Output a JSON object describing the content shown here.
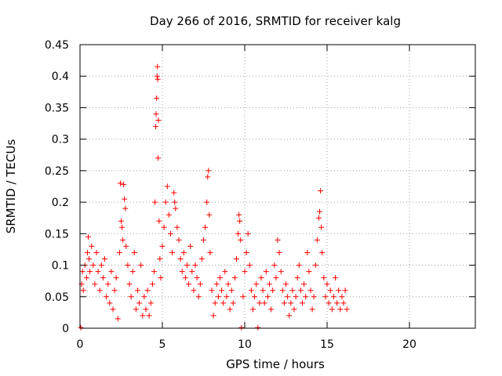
{
  "chart_data": {
    "type": "scatter",
    "title": "Day 266 of 2016, SRMTID for receiver kalg",
    "xlabel": "GPS time / hours",
    "ylabel": "SRMTID / TECUs",
    "xlim": [
      0,
      24
    ],
    "ylim": [
      0,
      0.45
    ],
    "xticks": [
      0,
      5,
      10,
      15,
      20
    ],
    "yticks": [
      0,
      0.05,
      0.1,
      0.15,
      0.2,
      0.25,
      0.3,
      0.35,
      0.4,
      0.45
    ],
    "xtick_labels": [
      "0",
      "5",
      "10",
      "15",
      "20"
    ],
    "ytick_labels": [
      "0",
      "0.05",
      "0.1",
      "0.15",
      "0.2",
      "0.25",
      "0.3",
      "0.35",
      "0.4",
      "0.45"
    ],
    "grid": true,
    "marker": "+",
    "series": [
      {
        "name": "SRMTID",
        "color": "#ff0000",
        "points": [
          [
            0.05,
            0.001
          ],
          [
            0.1,
            0.07
          ],
          [
            0.15,
            0.09
          ],
          [
            0.2,
            0.06
          ],
          [
            0.3,
            0.1
          ],
          [
            0.4,
            0.08
          ],
          [
            0.45,
            0.12
          ],
          [
            0.5,
            0.145
          ],
          [
            0.55,
            0.11
          ],
          [
            0.6,
            0.09
          ],
          [
            0.7,
            0.13
          ],
          [
            0.8,
            0.1
          ],
          [
            0.9,
            0.07
          ],
          [
            1.0,
            0.12
          ],
          [
            1.1,
            0.09
          ],
          [
            1.2,
            0.06
          ],
          [
            1.3,
            0.1
          ],
          [
            1.4,
            0.08
          ],
          [
            1.5,
            0.11
          ],
          [
            1.6,
            0.05
          ],
          [
            1.7,
            0.07
          ],
          [
            1.8,
            0.04
          ],
          [
            1.9,
            0.09
          ],
          [
            2.0,
            0.03
          ],
          [
            2.1,
            0.06
          ],
          [
            2.2,
            0.08
          ],
          [
            2.3,
            0.015
          ],
          [
            2.4,
            0.12
          ],
          [
            2.45,
            0.23
          ],
          [
            2.5,
            0.17
          ],
          [
            2.55,
            0.16
          ],
          [
            2.6,
            0.14
          ],
          [
            2.65,
            0.228
          ],
          [
            2.7,
            0.205
          ],
          [
            2.75,
            0.19
          ],
          [
            2.8,
            0.13
          ],
          [
            2.9,
            0.1
          ],
          [
            3.0,
            0.07
          ],
          [
            3.1,
            0.05
          ],
          [
            3.2,
            0.09
          ],
          [
            3.3,
            0.12
          ],
          [
            3.4,
            0.03
          ],
          [
            3.5,
            0.06
          ],
          [
            3.6,
            0.04
          ],
          [
            3.7,
            0.1
          ],
          [
            3.8,
            0.02
          ],
          [
            3.9,
            0.05
          ],
          [
            4.0,
            0.03
          ],
          [
            4.1,
            0.06
          ],
          [
            4.2,
            0.02
          ],
          [
            4.3,
            0.04
          ],
          [
            4.4,
            0.07
          ],
          [
            4.5,
            0.09
          ],
          [
            4.55,
            0.2
          ],
          [
            4.6,
            0.32
          ],
          [
            4.62,
            0.34
          ],
          [
            4.65,
            0.365
          ],
          [
            4.68,
            0.4
          ],
          [
            4.7,
            0.415
          ],
          [
            4.72,
            0.395
          ],
          [
            4.74,
            0.27
          ],
          [
            4.76,
            0.33
          ],
          [
            4.8,
            0.17
          ],
          [
            4.85,
            0.11
          ],
          [
            4.9,
            0.08
          ],
          [
            5.0,
            0.13
          ],
          [
            5.1,
            0.16
          ],
          [
            5.2,
            0.2
          ],
          [
            5.3,
            0.225
          ],
          [
            5.4,
            0.18
          ],
          [
            5.5,
            0.15
          ],
          [
            5.6,
            0.12
          ],
          [
            5.7,
            0.215
          ],
          [
            5.75,
            0.2
          ],
          [
            5.8,
            0.19
          ],
          [
            5.9,
            0.16
          ],
          [
            6.0,
            0.14
          ],
          [
            6.1,
            0.11
          ],
          [
            6.2,
            0.09
          ],
          [
            6.3,
            0.12
          ],
          [
            6.4,
            0.08
          ],
          [
            6.5,
            0.1
          ],
          [
            6.6,
            0.07
          ],
          [
            6.7,
            0.13
          ],
          [
            6.8,
            0.09
          ],
          [
            6.9,
            0.06
          ],
          [
            7.0,
            0.1
          ],
          [
            7.1,
            0.08
          ],
          [
            7.2,
            0.05
          ],
          [
            7.3,
            0.07
          ],
          [
            7.4,
            0.11
          ],
          [
            7.5,
            0.14
          ],
          [
            7.6,
            0.16
          ],
          [
            7.7,
            0.2
          ],
          [
            7.75,
            0.24
          ],
          [
            7.8,
            0.25
          ],
          [
            7.85,
            0.18
          ],
          [
            7.9,
            0.12
          ],
          [
            8.0,
            0.06
          ],
          [
            8.1,
            0.02
          ],
          [
            8.2,
            0.04
          ],
          [
            8.3,
            0.07
          ],
          [
            8.4,
            0.05
          ],
          [
            8.5,
            0.08
          ],
          [
            8.6,
            0.06
          ],
          [
            8.7,
            0.04
          ],
          [
            8.8,
            0.09
          ],
          [
            8.9,
            0.05
          ],
          [
            9.0,
            0.07
          ],
          [
            9.1,
            0.03
          ],
          [
            9.2,
            0.06
          ],
          [
            9.3,
            0.04
          ],
          [
            9.4,
            0.08
          ],
          [
            9.5,
            0.11
          ],
          [
            9.6,
            0.15
          ],
          [
            9.65,
            0.18
          ],
          [
            9.7,
            0.17
          ],
          [
            9.75,
            0.14
          ],
          [
            9.8,
            0.001
          ],
          [
            9.9,
            0.05
          ],
          [
            10.0,
            0.09
          ],
          [
            10.1,
            0.12
          ],
          [
            10.2,
            0.15
          ],
          [
            10.3,
            0.1
          ],
          [
            10.4,
            0.06
          ],
          [
            10.5,
            0.03
          ],
          [
            10.6,
            0.05
          ],
          [
            10.7,
            0.07
          ],
          [
            10.8,
            0.001
          ],
          [
            10.9,
            0.04
          ],
          [
            11.0,
            0.08
          ],
          [
            11.1,
            0.06
          ],
          [
            11.2,
            0.04
          ],
          [
            11.3,
            0.09
          ],
          [
            11.4,
            0.05
          ],
          [
            11.5,
            0.07
          ],
          [
            11.6,
            0.03
          ],
          [
            11.7,
            0.06
          ],
          [
            11.8,
            0.1
          ],
          [
            11.9,
            0.08
          ],
          [
            12.0,
            0.14
          ],
          [
            12.1,
            0.12
          ],
          [
            12.2,
            0.09
          ],
          [
            12.3,
            0.06
          ],
          [
            12.4,
            0.04
          ],
          [
            12.5,
            0.07
          ],
          [
            12.6,
            0.05
          ],
          [
            12.7,
            0.02
          ],
          [
            12.8,
            0.04
          ],
          [
            12.9,
            0.06
          ],
          [
            13.0,
            0.03
          ],
          [
            13.1,
            0.05
          ],
          [
            13.2,
            0.08
          ],
          [
            13.3,
            0.1
          ],
          [
            13.4,
            0.06
          ],
          [
            13.5,
            0.04
          ],
          [
            13.6,
            0.07
          ],
          [
            13.7,
            0.05
          ],
          [
            13.8,
            0.12
          ],
          [
            13.9,
            0.09
          ],
          [
            14.0,
            0.06
          ],
          [
            14.1,
            0.03
          ],
          [
            14.2,
            0.05
          ],
          [
            14.3,
            0.1
          ],
          [
            14.4,
            0.14
          ],
          [
            14.5,
            0.175
          ],
          [
            14.55,
            0.185
          ],
          [
            14.6,
            0.218
          ],
          [
            14.65,
            0.16
          ],
          [
            14.7,
            0.12
          ],
          [
            14.8,
            0.08
          ],
          [
            14.9,
            0.05
          ],
          [
            15.0,
            0.07
          ],
          [
            15.1,
            0.04
          ],
          [
            15.2,
            0.06
          ],
          [
            15.3,
            0.03
          ],
          [
            15.4,
            0.05
          ],
          [
            15.5,
            0.08
          ],
          [
            15.6,
            0.04
          ],
          [
            15.7,
            0.06
          ],
          [
            15.8,
            0.03
          ],
          [
            15.9,
            0.05
          ],
          [
            16.0,
            0.04
          ],
          [
            16.1,
            0.06
          ],
          [
            16.2,
            0.03
          ]
        ]
      }
    ]
  }
}
